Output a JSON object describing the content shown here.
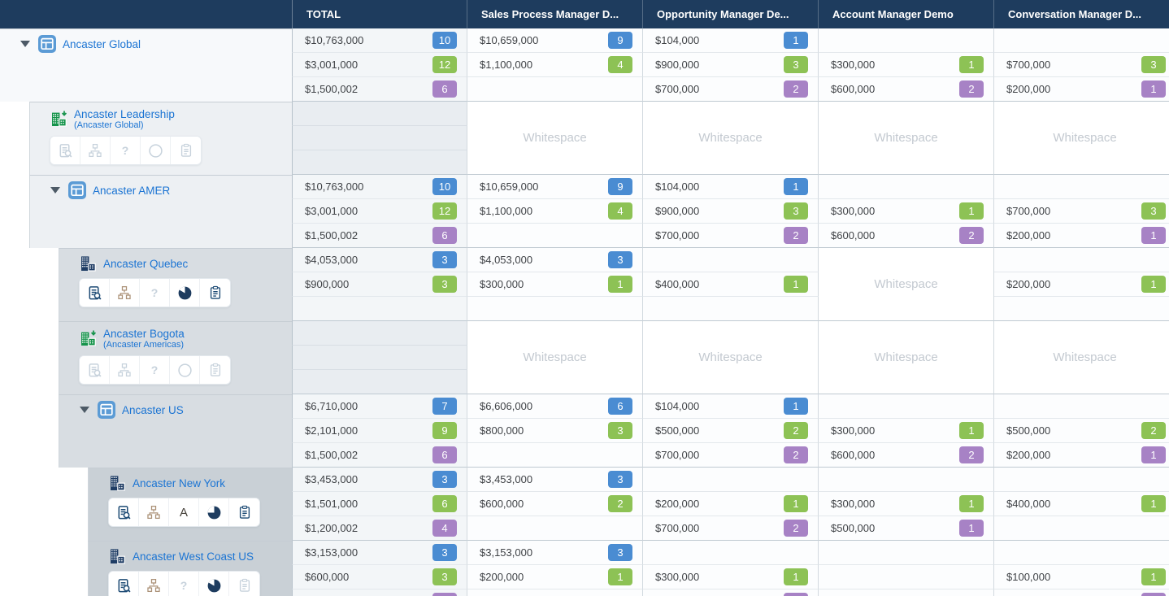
{
  "labels": {
    "whitespace": "Whitespace"
  },
  "header": {
    "total_label": "TOTAL",
    "columns": [
      "Sales Process Manager D...",
      "Opportunity Manager De...",
      "Account Manager Demo",
      "Conversation Manager D..."
    ]
  },
  "colors": {
    "header_bg": "#1e3c5e",
    "link_blue": "#1b74d3",
    "badge_blue": "#4a8cd2",
    "badge_green": "#8dc255",
    "badge_purple": "#a782c5",
    "icon_navy": "#1c4a74",
    "icon_tan": "#ab9177",
    "icon_disabled": "#c7d2dc",
    "org_icon_green": "#14934a",
    "org_icon_navy": "#1e3c64",
    "tile_icon_blue": "#5b9bd5"
  },
  "groups": [
    {
      "name": "Ancaster Global",
      "level": 0,
      "expandable": true,
      "icon": "dashboard-icon",
      "subtitle": null,
      "toolbar": null,
      "empty_total": false,
      "total": [
        {
          "value": "$10,763,000",
          "count": "10",
          "tone": "blue"
        },
        {
          "value": "$3,001,000",
          "count": "12",
          "tone": "green"
        },
        {
          "value": "$1,500,002",
          "count": "6",
          "tone": "purple"
        }
      ],
      "cols": [
        [
          {
            "value": "$10,659,000",
            "count": "9",
            "tone": "blue"
          },
          {
            "value": "$1,100,000",
            "count": "4",
            "tone": "green"
          },
          null
        ],
        [
          {
            "value": "$104,000",
            "count": "1",
            "tone": "blue"
          },
          {
            "value": "$900,000",
            "count": "3",
            "tone": "green"
          },
          {
            "value": "$700,000",
            "count": "2",
            "tone": "purple"
          }
        ],
        [
          null,
          {
            "value": "$300,000",
            "count": "1",
            "tone": "green"
          },
          {
            "value": "$600,000",
            "count": "2",
            "tone": "purple"
          }
        ],
        [
          null,
          {
            "value": "$700,000",
            "count": "3",
            "tone": "green"
          },
          {
            "value": "$200,000",
            "count": "1",
            "tone": "purple"
          }
        ]
      ]
    },
    {
      "name": "Ancaster Leadership",
      "level": 1,
      "expandable": false,
      "icon": "org-unit-move-icon",
      "subtitle": "(Ancaster Global)",
      "empty_total": true,
      "toolbar": [
        {
          "icon": "document-search",
          "enabled": false
        },
        {
          "icon": "org-chart",
          "enabled": false
        },
        {
          "icon": "question",
          "enabled": false
        },
        {
          "icon": "circle",
          "enabled": false
        },
        {
          "icon": "clipboard",
          "enabled": false
        }
      ],
      "total": [
        null,
        null,
        null
      ],
      "cols": [
        "whitespace",
        "whitespace",
        "whitespace",
        "whitespace"
      ]
    },
    {
      "name": "Ancaster AMER",
      "level": 1,
      "expandable": true,
      "icon": "dashboard-icon",
      "subtitle": null,
      "toolbar": null,
      "empty_total": false,
      "total": [
        {
          "value": "$10,763,000",
          "count": "10",
          "tone": "blue"
        },
        {
          "value": "$3,001,000",
          "count": "12",
          "tone": "green"
        },
        {
          "value": "$1,500,002",
          "count": "6",
          "tone": "purple"
        }
      ],
      "cols": [
        [
          {
            "value": "$10,659,000",
            "count": "9",
            "tone": "blue"
          },
          {
            "value": "$1,100,000",
            "count": "4",
            "tone": "green"
          },
          null
        ],
        [
          {
            "value": "$104,000",
            "count": "1",
            "tone": "blue"
          },
          {
            "value": "$900,000",
            "count": "3",
            "tone": "green"
          },
          {
            "value": "$700,000",
            "count": "2",
            "tone": "purple"
          }
        ],
        [
          null,
          {
            "value": "$300,000",
            "count": "1",
            "tone": "green"
          },
          {
            "value": "$600,000",
            "count": "2",
            "tone": "purple"
          }
        ],
        [
          null,
          {
            "value": "$700,000",
            "count": "3",
            "tone": "green"
          },
          {
            "value": "$200,000",
            "count": "1",
            "tone": "purple"
          }
        ]
      ]
    },
    {
      "name": "Ancaster Quebec",
      "level": 2,
      "expandable": false,
      "icon": "org-unit-icon",
      "subtitle": null,
      "empty_total": false,
      "toolbar": [
        {
          "icon": "document-search",
          "enabled": true
        },
        {
          "icon": "org-chart",
          "enabled": true
        },
        {
          "icon": "question",
          "enabled": false
        },
        {
          "icon": "pie-notch",
          "enabled": true
        },
        {
          "icon": "clipboard",
          "enabled": true
        }
      ],
      "total": [
        {
          "value": "$4,053,000",
          "count": "3",
          "tone": "blue"
        },
        {
          "value": "$900,000",
          "count": "3",
          "tone": "green"
        },
        null
      ],
      "cols": [
        [
          {
            "value": "$4,053,000",
            "count": "3",
            "tone": "blue"
          },
          {
            "value": "$300,000",
            "count": "1",
            "tone": "green"
          },
          null
        ],
        [
          null,
          {
            "value": "$400,000",
            "count": "1",
            "tone": "green"
          },
          null
        ],
        "whitespace",
        [
          null,
          {
            "value": "$200,000",
            "count": "1",
            "tone": "green"
          },
          null
        ]
      ]
    },
    {
      "name": "Ancaster Bogota",
      "level": 2,
      "expandable": false,
      "icon": "org-unit-move-icon",
      "subtitle": "(Ancaster Americas)",
      "empty_total": true,
      "toolbar": [
        {
          "icon": "document-search",
          "enabled": false
        },
        {
          "icon": "org-chart",
          "enabled": false
        },
        {
          "icon": "question",
          "enabled": false
        },
        {
          "icon": "circle",
          "enabled": false
        },
        {
          "icon": "clipboard",
          "enabled": false
        }
      ],
      "total": [
        null,
        null,
        null
      ],
      "cols": [
        "whitespace",
        "whitespace",
        "whitespace",
        "whitespace"
      ]
    },
    {
      "name": "Ancaster US",
      "level": 2,
      "expandable": true,
      "icon": "dashboard-icon",
      "subtitle": null,
      "toolbar": null,
      "empty_total": false,
      "total": [
        {
          "value": "$6,710,000",
          "count": "7",
          "tone": "blue"
        },
        {
          "value": "$2,101,000",
          "count": "9",
          "tone": "green"
        },
        {
          "value": "$1,500,002",
          "count": "6",
          "tone": "purple"
        }
      ],
      "cols": [
        [
          {
            "value": "$6,606,000",
            "count": "6",
            "tone": "blue"
          },
          {
            "value": "$800,000",
            "count": "3",
            "tone": "green"
          },
          null
        ],
        [
          {
            "value": "$104,000",
            "count": "1",
            "tone": "blue"
          },
          {
            "value": "$500,000",
            "count": "2",
            "tone": "green"
          },
          {
            "value": "$700,000",
            "count": "2",
            "tone": "purple"
          }
        ],
        [
          null,
          {
            "value": "$300,000",
            "count": "1",
            "tone": "green"
          },
          {
            "value": "$600,000",
            "count": "2",
            "tone": "purple"
          }
        ],
        [
          null,
          {
            "value": "$500,000",
            "count": "2",
            "tone": "green"
          },
          {
            "value": "$200,000",
            "count": "1",
            "tone": "purple"
          }
        ]
      ]
    },
    {
      "name": "Ancaster New York",
      "level": 3,
      "expandable": false,
      "icon": "org-unit-icon",
      "subtitle": null,
      "empty_total": false,
      "toolbar": [
        {
          "icon": "document-search",
          "enabled": true
        },
        {
          "icon": "org-chart",
          "enabled": true
        },
        {
          "icon": "letter-a",
          "enabled": true
        },
        {
          "icon": "pie-quarter",
          "enabled": true
        },
        {
          "icon": "clipboard",
          "enabled": true
        }
      ],
      "total": [
        {
          "value": "$3,453,000",
          "count": "3",
          "tone": "blue"
        },
        {
          "value": "$1,501,000",
          "count": "6",
          "tone": "green"
        },
        {
          "value": "$1,200,002",
          "count": "4",
          "tone": "purple"
        }
      ],
      "cols": [
        [
          {
            "value": "$3,453,000",
            "count": "3",
            "tone": "blue"
          },
          {
            "value": "$600,000",
            "count": "2",
            "tone": "green"
          },
          null
        ],
        [
          null,
          {
            "value": "$200,000",
            "count": "1",
            "tone": "green"
          },
          {
            "value": "$700,000",
            "count": "2",
            "tone": "purple"
          }
        ],
        [
          null,
          {
            "value": "$300,000",
            "count": "1",
            "tone": "green"
          },
          {
            "value": "$500,000",
            "count": "1",
            "tone": "purple"
          }
        ],
        [
          null,
          {
            "value": "$400,000",
            "count": "1",
            "tone": "green"
          },
          null
        ]
      ]
    },
    {
      "name": "Ancaster West Coast US",
      "level": 3,
      "expandable": false,
      "icon": "org-unit-icon",
      "subtitle": null,
      "empty_total": false,
      "toolbar": [
        {
          "icon": "document-search",
          "enabled": true
        },
        {
          "icon": "org-chart",
          "enabled": true
        },
        {
          "icon": "question",
          "enabled": false
        },
        {
          "icon": "pie-notch",
          "enabled": true
        },
        {
          "icon": "clipboard",
          "enabled": false
        }
      ],
      "total": [
        {
          "value": "$3,153,000",
          "count": "3",
          "tone": "blue"
        },
        {
          "value": "$600,000",
          "count": "3",
          "tone": "green"
        },
        {
          "partial": true,
          "tone": "purple"
        }
      ],
      "cols": [
        [
          {
            "value": "$3,153,000",
            "count": "3",
            "tone": "blue"
          },
          {
            "value": "$200,000",
            "count": "1",
            "tone": "green"
          },
          null
        ],
        [
          null,
          {
            "value": "$300,000",
            "count": "1",
            "tone": "green"
          },
          {
            "partial": true,
            "tone": "purple"
          }
        ],
        [
          null,
          null,
          null
        ],
        [
          null,
          {
            "value": "$100,000",
            "count": "1",
            "tone": "green"
          },
          {
            "partial": true,
            "tone": "purple"
          }
        ]
      ]
    }
  ]
}
